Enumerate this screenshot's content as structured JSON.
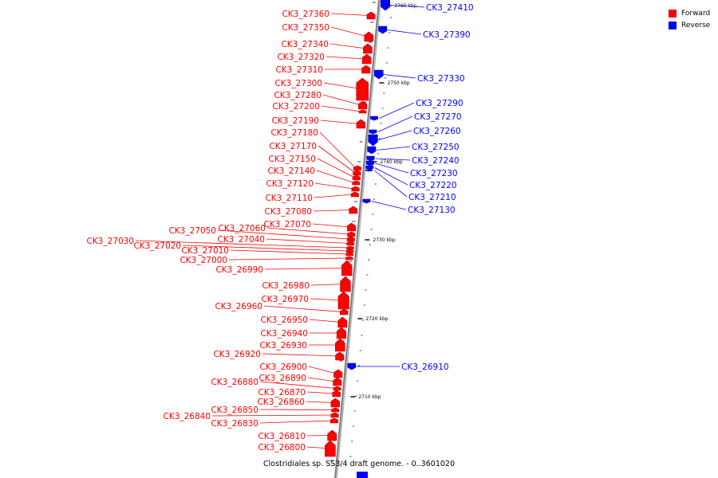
{
  "colors": {
    "forward": "#ff0000",
    "reverse": "#0000ff",
    "axis": "#888888"
  },
  "legend": [
    {
      "label": "Forward",
      "color": "#ff0000"
    },
    {
      "label": "Reverse",
      "color": "#0000ff"
    }
  ],
  "caption": "Clostridiales sp. SS3/4 draft genome. - 0..3601020",
  "scale": {
    "ticks": [
      "2760 kbp",
      "2750 kbp",
      "2740 kbp",
      "2730 kbp",
      "2720 kbp",
      "2710 kbp"
    ]
  },
  "forward_genes": [
    "CK3_27360",
    "CK3_27350",
    "CK3_27340",
    "CK3_27320",
    "CK3_27310",
    "CK3_27300",
    "CK3_27280",
    "CK3_27200",
    "CK3_27190",
    "CK3_27180",
    "CK3_27170",
    "CK3_27150",
    "CK3_27140",
    "CK3_27120",
    "CK3_27110",
    "CK3_27080",
    "CK3_27070",
    "CK3_27060",
    "CK3_27050",
    "CK3_27040",
    "CK3_27030",
    "CK3_27020",
    "CK3_27010",
    "CK3_27000",
    "CK3_26990",
    "CK3_26980",
    "CK3_26970",
    "CK3_26960",
    "CK3_26950",
    "CK3_26940",
    "CK3_26930",
    "CK3_26920",
    "CK3_26900",
    "CK3_26890",
    "CK3_26880",
    "CK3_26870",
    "CK3_26860",
    "CK3_26850",
    "CK3_26840",
    "CK3_26830",
    "CK3_26810",
    "CK3_26800"
  ],
  "reverse_genes": [
    "CK3_27410",
    "CK3_27390",
    "CK3_27330",
    "CK3_27290",
    "CK3_27270",
    "CK3_27260",
    "CK3_27250",
    "CK3_27240",
    "CK3_27230",
    "CK3_27220",
    "CK3_27210",
    "CK3_27130",
    "CK3_26910"
  ]
}
